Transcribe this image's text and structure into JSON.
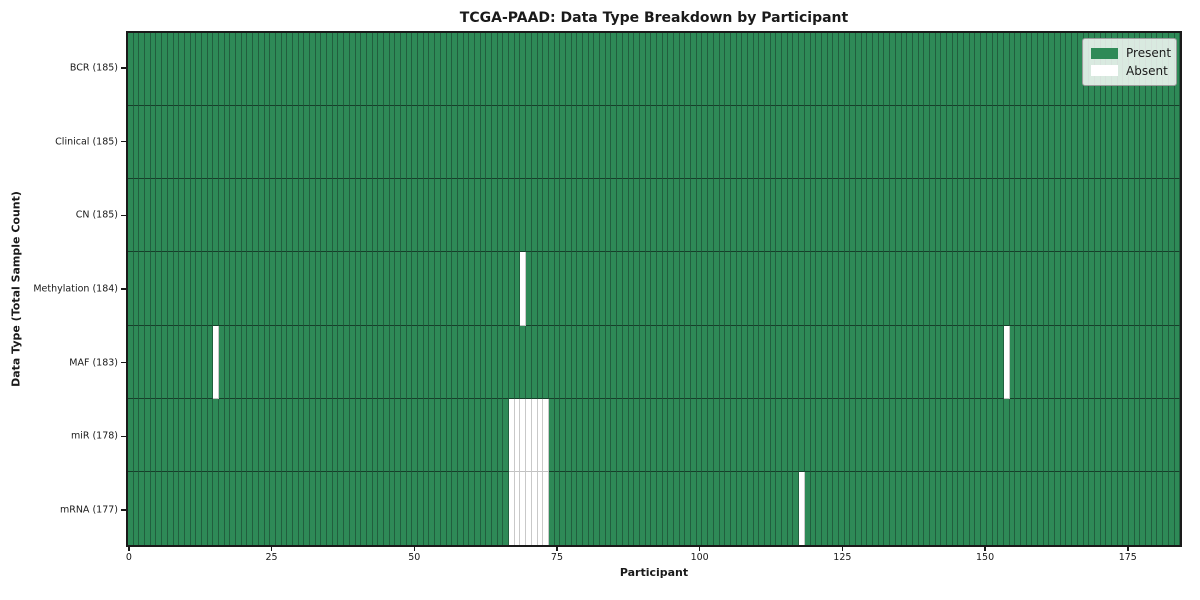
{
  "chart_data": {
    "type": "heatmap",
    "title": "TCGA-PAAD: Data Type Breakdown by Participant",
    "xlabel": "Participant",
    "ylabel": "Data Type (Total Sample Count)",
    "n_participants": 185,
    "x_ticks": [
      0,
      25,
      50,
      75,
      100,
      125,
      150,
      175
    ],
    "x_range": [
      0,
      184
    ],
    "grid": "cell-edges",
    "legend_position": "upper-right",
    "rows": [
      {
        "name": "BCR",
        "label": "BCR (185)",
        "total": 185,
        "absent": []
      },
      {
        "name": "Clinical",
        "label": "Clinical (185)",
        "total": 185,
        "absent": []
      },
      {
        "name": "CN",
        "label": "CN (185)",
        "total": 185,
        "absent": []
      },
      {
        "name": "Methylation",
        "label": "Methylation (184)",
        "total": 184,
        "absent": [
          69
        ]
      },
      {
        "name": "MAF",
        "label": "MAF (183)",
        "total": 183,
        "absent": [
          15,
          154
        ]
      },
      {
        "name": "miR",
        "label": "miR (178)",
        "total": 178,
        "absent": [
          67,
          68,
          69,
          70,
          71,
          72,
          73
        ]
      },
      {
        "name": "mRNA",
        "label": "mRNA (177)",
        "total": 177,
        "absent": [
          67,
          68,
          69,
          70,
          71,
          72,
          73,
          118
        ]
      }
    ],
    "legend": [
      {
        "label": "Present",
        "color": "#2e8a57"
      },
      {
        "label": "Absent",
        "color": "#ffffff"
      }
    ],
    "colors": {
      "present": "#2e8a57",
      "present_edge": "#215f3e",
      "absent": "#ffffff",
      "absent_edge": "#c9c9c9",
      "spine": "#1a1a1a"
    }
  }
}
